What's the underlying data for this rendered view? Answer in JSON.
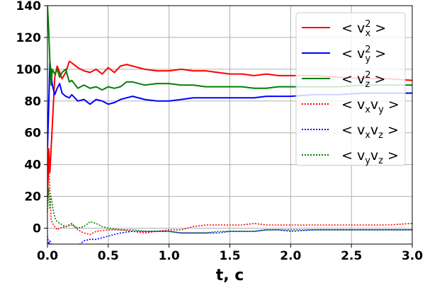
{
  "chart_data": {
    "type": "line",
    "xlabel": "t, c",
    "ylabel": "",
    "xlim": [
      0.0,
      3.0
    ],
    "ylim": [
      -10,
      140
    ],
    "xticks": [
      "0.0",
      "0.5",
      "1.0",
      "1.5",
      "2.0",
      "2.5",
      "3.0"
    ],
    "yticks": [
      "0",
      "20",
      "40",
      "60",
      "80",
      "100",
      "120",
      "140"
    ],
    "grid": true,
    "legend_position": "top-right",
    "series": [
      {
        "name": "<vx2>",
        "label_base": "< v",
        "label_sub": "x",
        "label_sup": "2",
        "label_end": " >",
        "color": "#ff0000",
        "style": "solid",
        "x": [
          0.0,
          0.01,
          0.02,
          0.04,
          0.06,
          0.08,
          0.1,
          0.12,
          0.15,
          0.18,
          0.2,
          0.25,
          0.3,
          0.35,
          0.4,
          0.45,
          0.5,
          0.55,
          0.6,
          0.65,
          0.7,
          0.8,
          0.9,
          1.0,
          1.1,
          1.2,
          1.3,
          1.4,
          1.5,
          1.6,
          1.7,
          1.8,
          1.9,
          2.0,
          2.2,
          2.4,
          2.6,
          2.8,
          3.0
        ],
        "y": [
          20,
          50,
          35,
          65,
          95,
          102,
          98,
          94,
          98,
          105,
          104,
          101,
          99,
          98,
          100,
          97,
          101,
          98,
          102,
          103,
          102,
          100,
          99,
          99,
          100,
          99,
          99,
          98,
          97,
          97,
          96,
          97,
          96,
          96,
          96,
          95,
          94,
          94,
          93
        ]
      },
      {
        "name": "<vy2>",
        "label_base": "< v",
        "label_sub": "y",
        "label_sup": "2",
        "label_end": " >",
        "color": "#0000ff",
        "style": "solid",
        "x": [
          0.0,
          0.01,
          0.02,
          0.04,
          0.06,
          0.08,
          0.1,
          0.12,
          0.15,
          0.18,
          0.2,
          0.25,
          0.3,
          0.35,
          0.4,
          0.45,
          0.5,
          0.55,
          0.6,
          0.65,
          0.7,
          0.8,
          0.9,
          1.0,
          1.1,
          1.2,
          1.3,
          1.4,
          1.5,
          1.6,
          1.7,
          1.8,
          1.9,
          2.0,
          2.2,
          2.4,
          2.6,
          2.8,
          3.0
        ],
        "y": [
          50,
          75,
          105,
          90,
          84,
          88,
          91,
          85,
          83,
          82,
          84,
          80,
          81,
          78,
          81,
          80,
          78,
          79,
          81,
          82,
          83,
          81,
          80,
          80,
          81,
          82,
          82,
          82,
          82,
          82,
          82,
          83,
          83,
          83,
          84,
          84,
          85,
          85,
          85
        ]
      },
      {
        "name": "<vz2>",
        "label_base": "< v",
        "label_sub": "z",
        "label_sup": "2",
        "label_end": " >",
        "color": "#008000",
        "style": "solid",
        "x": [
          0.0,
          0.01,
          0.02,
          0.03,
          0.04,
          0.06,
          0.08,
          0.1,
          0.12,
          0.15,
          0.18,
          0.2,
          0.25,
          0.3,
          0.35,
          0.4,
          0.45,
          0.5,
          0.55,
          0.6,
          0.65,
          0.7,
          0.8,
          0.9,
          1.0,
          1.1,
          1.2,
          1.3,
          1.4,
          1.5,
          1.6,
          1.7,
          1.8,
          1.9,
          2.0,
          2.2,
          2.4,
          2.6,
          2.8,
          3.0
        ],
        "y": [
          140,
          125,
          105,
          90,
          100,
          97,
          100,
          95,
          98,
          100,
          92,
          93,
          88,
          90,
          88,
          89,
          87,
          89,
          88,
          89,
          92,
          92,
          90,
          91,
          91,
          90,
          90,
          89,
          89,
          89,
          89,
          88,
          88,
          89,
          89,
          89,
          89,
          90,
          90,
          90
        ]
      },
      {
        "name": "<vxvy>",
        "label_base": "< v",
        "label_sub": "x",
        "label_mid": "v",
        "label_sub2": "y",
        "label_end": " >",
        "color": "#ff0000",
        "style": "dotted",
        "x": [
          0.0,
          0.01,
          0.02,
          0.03,
          0.05,
          0.08,
          0.1,
          0.15,
          0.2,
          0.25,
          0.3,
          0.35,
          0.4,
          0.5,
          0.6,
          0.7,
          0.8,
          0.9,
          1.0,
          1.1,
          1.2,
          1.3,
          1.4,
          1.5,
          1.6,
          1.7,
          1.8,
          1.9,
          2.0,
          2.2,
          2.4,
          2.6,
          2.8,
          3.0
        ],
        "y": [
          15,
          40,
          25,
          5,
          2,
          -1,
          0,
          1,
          3,
          -1,
          -3,
          -4,
          -2,
          -1,
          -1,
          -2,
          -3,
          -2,
          -1,
          -1,
          1,
          2,
          2,
          2,
          2,
          3,
          2,
          2,
          2,
          2,
          2,
          2,
          2,
          3
        ]
      },
      {
        "name": "<vxvz>",
        "label_base": "< v",
        "label_sub": "x",
        "label_mid": "v",
        "label_sub2": "z",
        "label_end": " >",
        "color": "#0000ff",
        "style": "dotted",
        "x": [
          0.0,
          0.01,
          0.02,
          0.04,
          0.06,
          0.1,
          0.15,
          0.2,
          0.25,
          0.3,
          0.35,
          0.4,
          0.5,
          0.6,
          0.7,
          0.8,
          0.9,
          1.0,
          1.1,
          1.2,
          1.3,
          1.4,
          1.5,
          1.6,
          1.7,
          1.8,
          1.9,
          2.0,
          2.2,
          2.4,
          2.6,
          2.8,
          3.0
        ],
        "y": [
          -5,
          -10,
          -8,
          -12,
          -13,
          -12,
          -14,
          -12,
          -11,
          -8,
          -7,
          -7,
          -5,
          -3,
          -2,
          -2,
          -2,
          -2,
          -3,
          -3,
          -3,
          -3,
          -2,
          -2,
          -2,
          -1,
          -1,
          -2,
          -1,
          -1,
          -1,
          -1,
          -1
        ]
      },
      {
        "name": "<vyvz>",
        "label_base": "< v",
        "label_sub": "y",
        "label_mid": "v",
        "label_sub2": "z",
        "label_end": " >",
        "color": "#008000",
        "style": "dotted",
        "x": [
          0.0,
          0.01,
          0.02,
          0.03,
          0.05,
          0.07,
          0.1,
          0.15,
          0.2,
          0.25,
          0.3,
          0.35,
          0.4,
          0.45,
          0.5,
          0.6,
          0.7,
          0.8,
          0.9,
          1.0,
          1.1,
          1.2,
          1.3,
          1.4,
          1.5,
          1.6,
          1.7,
          1.8,
          1.9,
          2.0,
          2.2,
          2.4,
          2.6,
          2.8,
          3.0
        ],
        "y": [
          10,
          25,
          12,
          20,
          10,
          5,
          3,
          1,
          2,
          0,
          1,
          4,
          3,
          1,
          0,
          -1,
          -1,
          -2,
          -2,
          -2,
          -3,
          -3,
          -3,
          -2,
          -2,
          -2,
          -2,
          -1,
          -1,
          -1,
          -1,
          -1,
          -1,
          -1,
          -1
        ]
      }
    ]
  }
}
